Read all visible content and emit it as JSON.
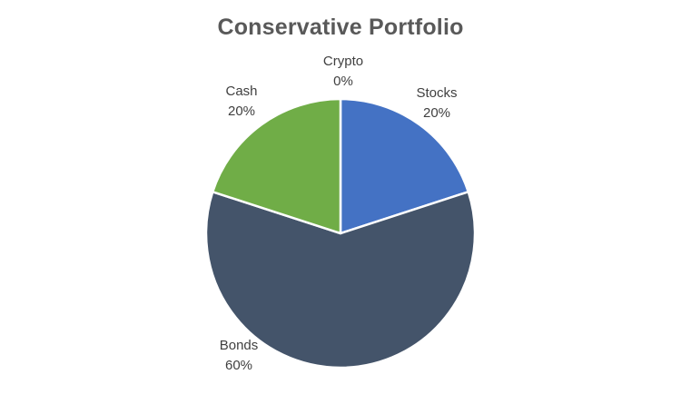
{
  "chart_data": {
    "type": "pie",
    "title": "Conservative Portfolio",
    "categories": [
      "Stocks",
      "Bonds",
      "Cash",
      "Crypto"
    ],
    "values": [
      20,
      60,
      20,
      0
    ],
    "value_labels": [
      "20%",
      "60%",
      "20%",
      "0%"
    ],
    "colors": [
      "#4472C4",
      "#44546A",
      "#70AD47",
      "#FFC000"
    ],
    "start_angle": 0,
    "direction": "clockwise",
    "legend": "none"
  }
}
